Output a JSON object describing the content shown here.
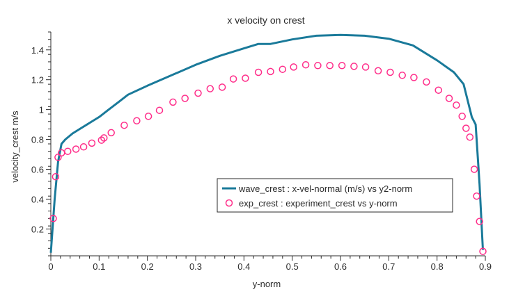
{
  "chart_data": {
    "type": "line",
    "title": "x velocity on crest",
    "xlabel": "y-norm",
    "ylabel": "velocity_crest m/s",
    "xlim": [
      0,
      0.9
    ],
    "ylim": [
      0.02,
      1.52
    ],
    "x_ticks": [
      0,
      0.1,
      0.2,
      0.3,
      0.4,
      0.5,
      0.6,
      0.7,
      0.8,
      0.9
    ],
    "x_tick_labels": [
      "0",
      "0.1",
      "0.2",
      "0.3",
      "0.4",
      "0.5",
      "0.6",
      "0.7",
      "0.8",
      "0.9"
    ],
    "y_ticks": [
      0.2,
      0.4,
      0.6,
      0.8,
      1.0,
      1.2,
      1.4
    ],
    "y_tick_labels": [
      "0.2",
      "0.4",
      "0.6",
      "0.8",
      "1",
      "1.2",
      "1.4"
    ],
    "legend_position": "center-right",
    "series": [
      {
        "name": "wave_crest : x-vel-normal (m/s) vs y2-norm",
        "kind": "line",
        "color": "#1a7a9a",
        "x": [
          0,
          0.008,
          0.015,
          0.022,
          0.03,
          0.045,
          0.06,
          0.08,
          0.1,
          0.12,
          0.14,
          0.16,
          0.2,
          0.25,
          0.3,
          0.35,
          0.4,
          0.43,
          0.455,
          0.5,
          0.55,
          0.6,
          0.65,
          0.7,
          0.75,
          0.8,
          0.835,
          0.855,
          0.872,
          0.88,
          0.888,
          0.895
        ],
        "y": [
          0.04,
          0.4,
          0.65,
          0.77,
          0.8,
          0.84,
          0.87,
          0.91,
          0.95,
          1.0,
          1.05,
          1.1,
          1.16,
          1.23,
          1.3,
          1.36,
          1.41,
          1.44,
          1.44,
          1.47,
          1.495,
          1.5,
          1.495,
          1.475,
          1.43,
          1.33,
          1.25,
          1.17,
          0.95,
          0.9,
          0.5,
          0.06
        ]
      },
      {
        "name": "exp_crest : experiment_crest vs y-norm",
        "kind": "scatter",
        "color": "#ff2d8a",
        "x": [
          0.005,
          0.01,
          0.015,
          0.022,
          0.035,
          0.052,
          0.068,
          0.085,
          0.105,
          0.11,
          0.125,
          0.152,
          0.178,
          0.202,
          0.225,
          0.253,
          0.278,
          0.305,
          0.33,
          0.355,
          0.378,
          0.403,
          0.43,
          0.455,
          0.48,
          0.503,
          0.528,
          0.553,
          0.578,
          0.603,
          0.628,
          0.652,
          0.678,
          0.703,
          0.728,
          0.752,
          0.778,
          0.803,
          0.825,
          0.84,
          0.852,
          0.86,
          0.868,
          0.877,
          0.882,
          0.888,
          0.895
        ],
        "y": [
          0.27,
          0.55,
          0.68,
          0.71,
          0.72,
          0.735,
          0.75,
          0.775,
          0.795,
          0.81,
          0.845,
          0.895,
          0.925,
          0.955,
          0.995,
          1.05,
          1.075,
          1.11,
          1.14,
          1.15,
          1.205,
          1.21,
          1.25,
          1.255,
          1.27,
          1.285,
          1.3,
          1.295,
          1.295,
          1.295,
          1.29,
          1.285,
          1.26,
          1.25,
          1.23,
          1.215,
          1.185,
          1.13,
          1.075,
          1.03,
          0.955,
          0.875,
          0.815,
          0.6,
          0.42,
          0.25,
          0.05
        ]
      }
    ]
  }
}
